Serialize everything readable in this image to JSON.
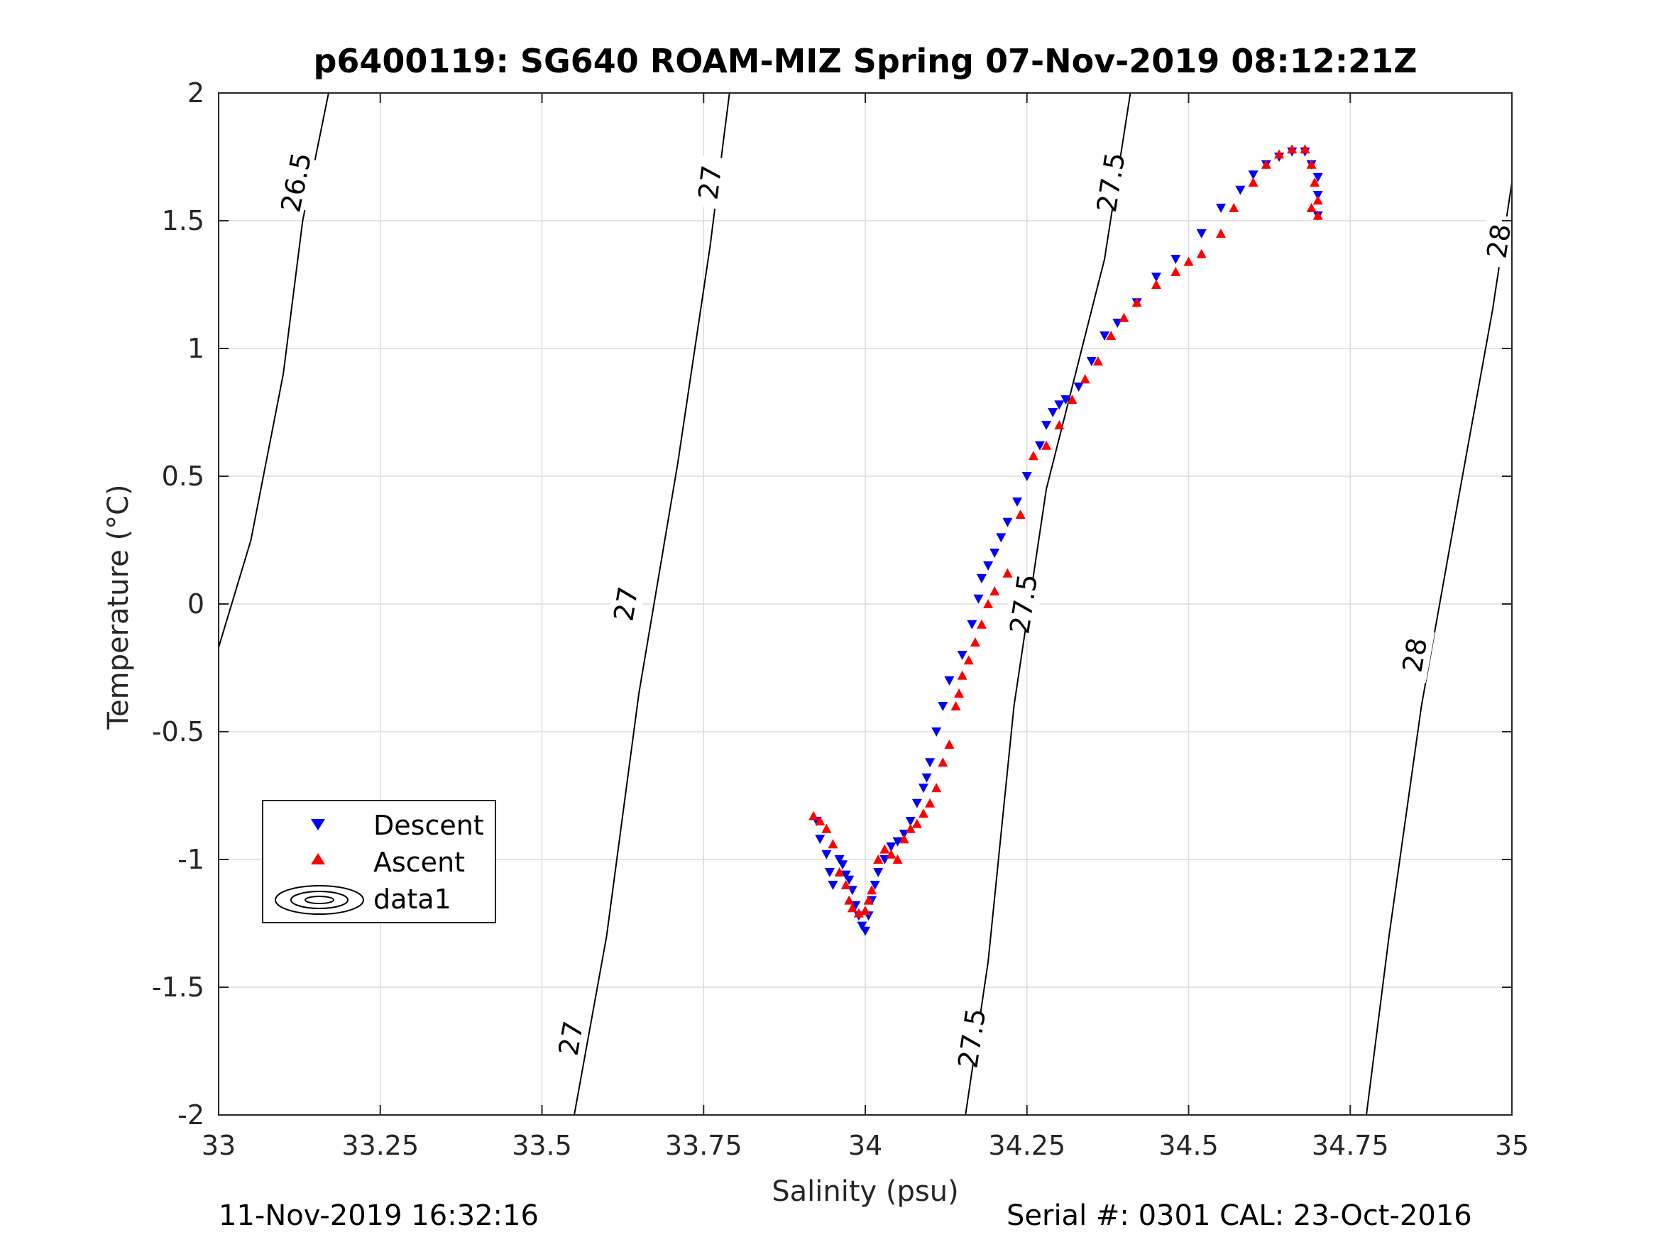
{
  "chart_data": {
    "type": "scatter",
    "title": "p6400119: SG640 ROAM-MIZ Spring 07-Nov-2019 08:12:21Z",
    "xlabel": "Salinity (psu)",
    "ylabel": "Temperature (°C)",
    "xlim": [
      33,
      35
    ],
    "ylim": [
      -2,
      2
    ],
    "x_ticks": [
      33,
      33.25,
      33.5,
      33.75,
      34,
      34.25,
      34.5,
      34.75,
      35
    ],
    "x_tick_labels": [
      "33",
      "33.25",
      "33.5",
      "33.75",
      "34",
      "34.25",
      "34.5",
      "34.75",
      "35"
    ],
    "y_ticks": [
      -2,
      -1.5,
      -1,
      -0.5,
      0,
      0.5,
      1,
      1.5,
      2
    ],
    "y_tick_labels": [
      "-2",
      "-1.5",
      "-1",
      "-0.5",
      "0",
      "0.5",
      "1",
      "1.5",
      "2"
    ],
    "grid": true,
    "legend": {
      "position": "left",
      "entries": [
        "Descent",
        "Ascent",
        "data1"
      ]
    },
    "colors": {
      "descent": "#0000ff",
      "ascent": "#ff0000",
      "contour": "#000000",
      "grid": "#dcdcdc"
    },
    "contours": [
      {
        "label": "26.5",
        "points": [
          [
            33.0,
            -0.17
          ],
          [
            33.05,
            0.25
          ],
          [
            33.1,
            0.9
          ],
          [
            33.13,
            1.5
          ],
          [
            33.17,
            2.0
          ]
        ],
        "label_points": [
          [
            33.12,
            1.65
          ]
        ]
      },
      {
        "label": "27",
        "points": [
          [
            33.55,
            -2.0
          ],
          [
            33.6,
            -1.3
          ],
          [
            33.65,
            -0.35
          ],
          [
            33.71,
            0.55
          ],
          [
            33.76,
            1.4
          ],
          [
            33.79,
            2.0
          ]
        ],
        "label_points": [
          [
            33.545,
            -1.7
          ],
          [
            33.63,
            0.0
          ],
          [
            33.76,
            1.65
          ]
        ]
      },
      {
        "label": "27.5",
        "points": [
          [
            34.155,
            -2.0
          ],
          [
            34.19,
            -1.4
          ],
          [
            34.23,
            -0.4
          ],
          [
            34.28,
            0.45
          ],
          [
            34.37,
            1.35
          ],
          [
            34.41,
            2.0
          ]
        ],
        "label_points": [
          [
            34.165,
            -1.7
          ],
          [
            34.245,
            0.0
          ],
          [
            34.38,
            1.65
          ]
        ]
      },
      {
        "label": "28",
        "points": [
          [
            34.775,
            -2.0
          ],
          [
            34.81,
            -1.3
          ],
          [
            34.86,
            -0.4
          ],
          [
            34.92,
            0.45
          ],
          [
            34.97,
            1.15
          ],
          [
            35.0,
            1.65
          ]
        ],
        "label_points": [
          [
            34.85,
            -0.2
          ],
          [
            34.98,
            1.42
          ]
        ]
      }
    ],
    "series": [
      {
        "name": "Descent",
        "marker": "triangle-down",
        "x": [
          33.925,
          33.93,
          33.94,
          33.945,
          33.95,
          33.96,
          33.965,
          33.97,
          33.975,
          33.98,
          33.985,
          33.99,
          33.995,
          34.0,
          34.005,
          34.01,
          34.015,
          34.02,
          34.03,
          34.04,
          34.05,
          34.06,
          34.07,
          34.08,
          34.09,
          34.095,
          34.1,
          34.11,
          34.12,
          34.13,
          34.15,
          34.165,
          34.175,
          34.18,
          34.19,
          34.2,
          34.21,
          34.22,
          34.235,
          34.25,
          34.27,
          34.28,
          34.29,
          34.3,
          34.31,
          34.33,
          34.35,
          34.37,
          34.39,
          34.42,
          34.45,
          34.48,
          34.52,
          34.55,
          34.58,
          34.6,
          34.62,
          34.64,
          34.66,
          34.68,
          34.69,
          34.7,
          34.7,
          34.7
        ],
        "y": [
          -0.85,
          -0.92,
          -0.98,
          -1.05,
          -1.1,
          -1.0,
          -1.02,
          -1.06,
          -1.08,
          -1.12,
          -1.18,
          -1.22,
          -1.26,
          -1.28,
          -1.22,
          -1.16,
          -1.1,
          -1.05,
          -1.0,
          -0.95,
          -0.93,
          -0.9,
          -0.85,
          -0.78,
          -0.72,
          -0.68,
          -0.62,
          -0.5,
          -0.4,
          -0.3,
          -0.2,
          -0.08,
          0.02,
          0.1,
          0.15,
          0.2,
          0.26,
          0.32,
          0.4,
          0.5,
          0.62,
          0.7,
          0.75,
          0.78,
          0.8,
          0.85,
          0.95,
          1.05,
          1.1,
          1.18,
          1.28,
          1.35,
          1.45,
          1.55,
          1.62,
          1.68,
          1.72,
          1.75,
          1.77,
          1.77,
          1.72,
          1.67,
          1.6,
          1.52
        ]
      },
      {
        "name": "Ascent",
        "marker": "triangle-up",
        "x": [
          33.92,
          33.93,
          33.94,
          33.95,
          33.96,
          33.97,
          33.975,
          33.98,
          33.99,
          34.0,
          34.005,
          34.01,
          34.02,
          34.03,
          34.04,
          34.05,
          34.06,
          34.07,
          34.08,
          34.09,
          34.1,
          34.11,
          34.12,
          34.13,
          34.14,
          34.145,
          34.15,
          34.16,
          34.17,
          34.18,
          34.19,
          34.2,
          34.22,
          34.24,
          34.26,
          34.28,
          34.3,
          34.32,
          34.34,
          34.36,
          34.38,
          34.4,
          34.42,
          34.45,
          34.48,
          34.5,
          34.52,
          34.55,
          34.57,
          34.6,
          34.62,
          34.64,
          34.66,
          34.68,
          34.69,
          34.695,
          34.7,
          34.7,
          34.69
        ],
        "y": [
          -0.83,
          -0.85,
          -0.88,
          -0.94,
          -1.05,
          -1.1,
          -1.16,
          -1.19,
          -1.21,
          -1.2,
          -1.16,
          -1.12,
          -1.0,
          -0.96,
          -0.98,
          -1.0,
          -0.92,
          -0.88,
          -0.86,
          -0.82,
          -0.78,
          -0.72,
          -0.62,
          -0.55,
          -0.4,
          -0.35,
          -0.28,
          -0.22,
          -0.15,
          -0.08,
          0.0,
          0.05,
          0.12,
          0.35,
          0.58,
          0.62,
          0.7,
          0.8,
          0.88,
          0.95,
          1.05,
          1.12,
          1.18,
          1.25,
          1.3,
          1.34,
          1.37,
          1.45,
          1.55,
          1.65,
          1.72,
          1.76,
          1.78,
          1.78,
          1.72,
          1.65,
          1.58,
          1.52,
          1.55
        ]
      }
    ]
  },
  "footer": {
    "timestamp": "11-Nov-2019 16:32:16",
    "serial": "Serial #: 0301  CAL: 23-Oct-2016"
  }
}
